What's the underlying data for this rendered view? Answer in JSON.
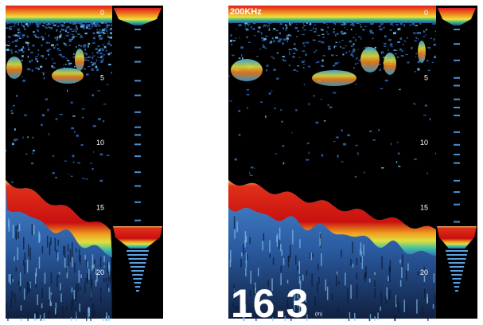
{
  "left_panel": {
    "depth_scale": [
      "0",
      "5",
      "10",
      "15",
      "20"
    ]
  },
  "right_panel": {
    "frequency": "200KHz",
    "depth_scale": [
      "0",
      "5",
      "10",
      "15",
      "20"
    ],
    "depth_reading": "16.3",
    "depth_unit": "(m)"
  }
}
